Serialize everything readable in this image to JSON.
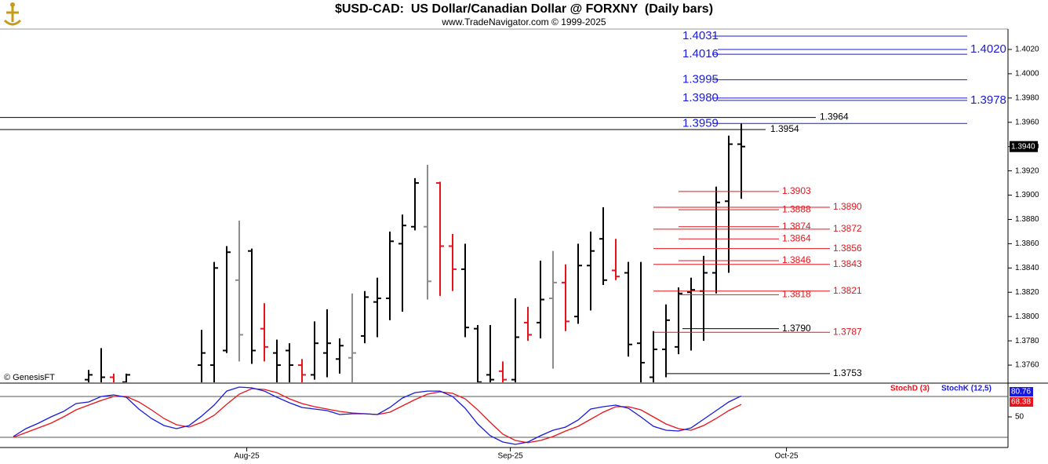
{
  "chart_data": [
    {
      "type": "ohlc",
      "title": "$USD-CAD:  US Dollar/Canadian Dollar @ FORXNY  (Daily bars)",
      "subtitle": "www.TradeNavigator.com © 1999-2025",
      "annotation": "© GenesisFT",
      "categories": [
        null,
        null,
        null,
        null,
        null,
        null,
        null,
        null,
        null,
        null,
        null,
        null,
        null,
        null,
        null,
        null,
        null,
        null,
        null,
        null,
        null,
        null,
        null,
        null,
        null,
        null,
        null,
        null,
        null,
        null,
        null,
        null,
        null,
        null,
        null,
        null,
        null,
        null,
        null,
        null,
        null,
        null,
        null,
        null,
        null,
        null,
        null,
        null,
        null,
        null,
        null,
        null,
        null,
        null,
        null,
        null,
        null,
        null,
        null
      ],
      "open": [
        null,
        null,
        null,
        null,
        null,
        null,
        1.3748,
        1.3745,
        1.375,
        1.3746,
        null,
        null,
        null,
        null,
        null,
        1.376,
        1.376,
        1.3772,
        1.383,
        1.3854,
        1.379,
        1.377,
        1.3772,
        1.376,
        1.3752,
        1.377,
        1.3765,
        1.3766,
        1.3784,
        1.3812,
        1.3815,
        1.386,
        1.3874,
        1.3874,
        1.391,
        1.3858,
        1.3839,
        1.379,
        1.3752,
        1.3755,
        1.3748,
        1.3795,
        1.3795,
        1.3815,
        1.3828,
        1.38,
        1.3842,
        1.3864,
        1.3838,
        1.3836,
        1.3778,
        1.375,
        1.3773,
        1.3775,
        1.382,
        1.3821,
        1.3836,
        1.3895,
        1.3942
      ],
      "high": [
        null,
        null,
        null,
        null,
        null,
        null,
        1.3756,
        1.3774,
        1.3753,
        1.3753,
        null,
        null,
        null,
        null,
        null,
        1.3789,
        1.3845,
        1.3858,
        1.3879,
        1.3856,
        1.3811,
        1.3781,
        1.3778,
        1.3765,
        1.3796,
        1.3806,
        1.3782,
        1.3819,
        1.3821,
        1.3832,
        1.387,
        1.3884,
        1.3914,
        1.3925,
        1.3911,
        1.3868,
        1.386,
        1.3793,
        1.3793,
        1.3763,
        1.3815,
        1.3808,
        1.3846,
        1.3854,
        1.3843,
        1.386,
        1.387,
        1.389,
        1.3864,
        1.3845,
        1.3845,
        1.3788,
        1.381,
        1.3824,
        1.3832,
        1.385,
        1.3907,
        1.3949,
        1.3959
      ],
      "low": [
        null,
        null,
        null,
        null,
        null,
        null,
        1.3735,
        1.3738,
        1.374,
        1.3742,
        null,
        null,
        null,
        null,
        null,
        1.3745,
        1.3742,
        1.377,
        1.3763,
        1.3761,
        1.3763,
        1.3744,
        1.3744,
        1.3744,
        1.3748,
        1.375,
        1.3753,
        1.3744,
        1.3778,
        1.3783,
        1.3797,
        1.3804,
        1.3871,
        1.3814,
        1.3817,
        1.3821,
        1.3783,
        1.3744,
        1.3744,
        1.3744,
        1.3744,
        1.378,
        1.3782,
        1.3757,
        1.3788,
        1.3794,
        1.3805,
        1.3826,
        1.383,
        1.3767,
        1.3744,
        1.3744,
        1.375,
        1.3769,
        1.3772,
        1.378,
        1.3819,
        1.3836,
        1.3897
      ],
      "close": [
        null,
        null,
        null,
        null,
        null,
        null,
        1.3752,
        1.375,
        1.3745,
        1.3752,
        null,
        null,
        null,
        null,
        null,
        1.377,
        1.384,
        1.3853,
        1.3785,
        1.3772,
        1.3775,
        1.376,
        1.376,
        1.3752,
        1.3778,
        1.3778,
        1.3776,
        1.377,
        1.3816,
        1.3815,
        1.3862,
        1.3875,
        1.391,
        1.3829,
        1.3858,
        1.3839,
        1.3791,
        1.3746,
        1.3748,
        1.3748,
        1.3783,
        1.3785,
        1.3814,
        1.3828,
        1.3796,
        1.3842,
        1.3854,
        1.383,
        1.3833,
        1.3777,
        1.3762,
        1.3773,
        1.3797,
        1.3819,
        1.3822,
        1.3836,
        1.3894,
        1.3942,
        1.394
      ],
      "colors": [
        null,
        null,
        null,
        null,
        null,
        null,
        "#000000",
        "#000000",
        "#e8141b",
        "#000000",
        null,
        null,
        null,
        null,
        null,
        "#000000",
        "#000000",
        "#000000",
        "#8c8c8c",
        "#000000",
        "#e8141b",
        "#000000",
        "#000000",
        "#e8141b",
        "#000000",
        "#000000",
        "#000000",
        "#8c8c8c",
        "#000000",
        "#000000",
        "#000000",
        "#000000",
        "#000000",
        "#8c8c8c",
        "#e8141b",
        "#e8141b",
        "#000000",
        "#000000",
        "#000000",
        "#e8141b",
        "#000000",
        "#e8141b",
        "#000000",
        "#8c8c8c",
        "#e8141b",
        "#000000",
        "#000000",
        "#000000",
        "#e8141b",
        "#000000",
        "#000000",
        "#000000",
        "#000000",
        "#000000",
        "#000000",
        "#000000",
        "#000000",
        "#000000",
        "#000000"
      ],
      "xlim": [
        -1.0625,
        79.25
      ],
      "xticks": [
        {
          "value": 18.6,
          "label": "Aug-25"
        },
        {
          "value": 39.6,
          "label": "Sep-25"
        },
        {
          "value": 61.6,
          "label": "Oct-25"
        }
      ],
      "ylim": [
        1.37458,
        1.40368
      ],
      "yticks": [
        {
          "value": 1.376,
          "label": "1.3760"
        },
        {
          "value": 1.378,
          "label": "1.3780"
        },
        {
          "value": 1.38,
          "label": "1.3800"
        },
        {
          "value": 1.382,
          "label": "1.3820"
        },
        {
          "value": 1.384,
          "label": "1.3840"
        },
        {
          "value": 1.386,
          "label": "1.3860"
        },
        {
          "value": 1.388,
          "label": "1.3880"
        },
        {
          "value": 1.39,
          "label": "1.3900"
        },
        {
          "value": 1.392,
          "label": "1.3920"
        },
        {
          "value": 1.394,
          "label": "1.3940"
        },
        {
          "value": 1.396,
          "label": "1.3960"
        },
        {
          "value": 1.398,
          "label": "1.3980"
        },
        {
          "value": 1.4,
          "label": "1.4000"
        },
        {
          "value": 1.402,
          "label": "1.4020"
        }
      ],
      "last": {
        "value": 1.394,
        "label": "1.3940"
      },
      "levels": [
        {
          "color": "#1a1adb",
          "values": [
            1.4031,
            1.4016,
            1.3995,
            {
              "value": 1.398,
              "label": "1.3980"
            },
            1.3959
          ]
        },
        {
          "color": "#1a1adb",
          "values": [
            {
              "value": 1.402,
              "label": "1.4020"
            },
            1.3978
          ]
        },
        {
          "color": "#000000",
          "values": [
            1.3964
          ]
        },
        {
          "color": "#000000",
          "values": [
            1.3954
          ]
        },
        {
          "color": "#e8141b",
          "values": [
            1.3903,
            1.3888,
            1.3874,
            1.3864,
            1.3846,
            1.3818
          ]
        },
        {
          "color": "#e8141b",
          "values": [
            {
              "value": 1.389,
              "label": "1.3890"
            },
            1.3872,
            1.3856,
            1.3843,
            1.3821,
            1.3787
          ]
        },
        {
          "color": "#000000",
          "values": [
            {
              "value": 1.379,
              "label": "1.3790"
            }
          ]
        },
        {
          "color": "#000000",
          "values": [
            1.3753
          ]
        }
      ]
    },
    {
      "type": "line",
      "series": [
        {
          "name": "StochD (3)",
          "color": "#e8141b",
          "values": [
            20.0,
            26.9,
            33.9,
            40.8,
            50.0,
            60.4,
            67.3,
            74.2,
            80.0,
            80.0,
            71.9,
            60.4,
            47.7,
            38.5,
            35.0,
            41.9,
            52.3,
            68.4,
            83.4,
            91.5,
            90.4,
            85.7,
            76.5,
            69.6,
            65.0,
            61.5,
            58.1,
            55.8,
            54.6,
            53.5,
            56.9,
            66.1,
            75.4,
            83.4,
            86.9,
            84.6,
            76.5,
            60.4,
            41.9,
            24.6,
            15.4,
            12.0,
            15.4,
            21.2,
            29.2,
            36.2,
            46.5,
            56.9,
            65.0,
            65.0,
            60.4,
            50.0,
            39.6,
            32.7,
            30.4,
            37.3,
            47.7,
            59.2,
            68.38
          ]
        },
        {
          "name": "StochK (12,5)",
          "color": "#1a1adb",
          "values": [
            21.2,
            32.7,
            40.8,
            50.0,
            58.1,
            69.6,
            71.9,
            80.0,
            82.3,
            78.8,
            61.5,
            47.7,
            37.3,
            32.7,
            37.3,
            51.2,
            67.3,
            88.0,
            93.8,
            92.7,
            88.0,
            78.8,
            70.8,
            63.8,
            61.5,
            59.2,
            53.5,
            54.6,
            54.6,
            53.5,
            63.8,
            77.7,
            85.7,
            88.0,
            88.0,
            80.0,
            62.7,
            39.6,
            22.3,
            13.1,
            9.6,
            13.1,
            22.3,
            30.4,
            35.0,
            45.4,
            61.5,
            65.0,
            67.3,
            62.7,
            50.0,
            36.2,
            30.4,
            29.2,
            33.9,
            46.5,
            59.2,
            71.9,
            80.76
          ]
        }
      ],
      "ylim": [
        5.0,
        97.3
      ],
      "yticks": [
        50
      ],
      "hlines": [
        20,
        80
      ]
    }
  ]
}
